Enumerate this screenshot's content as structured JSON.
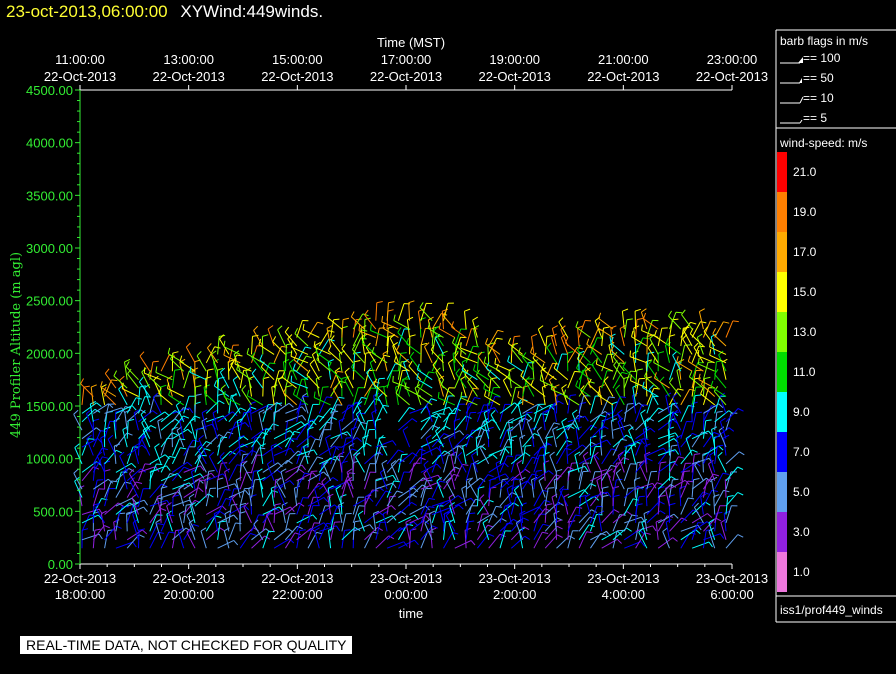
{
  "header": {
    "date": "23-oct-2013,06:00:00",
    "title": "XYWind:449winds."
  },
  "footer": {
    "disclaimer": "REAL-TIME DATA, NOT CHECKED FOR QUALITY",
    "source": "iss1/prof449_winds"
  },
  "legend": {
    "barb_title": "barb flags in m/s",
    "barbs": [
      {
        "label": "== 100"
      },
      {
        "label": "== 50"
      },
      {
        "label": "== 10"
      },
      {
        "label": "== 5"
      }
    ],
    "speed_title": "wind-speed: m/s",
    "speed_scale": [
      {
        "label": "21.0",
        "color": "#ff0000"
      },
      {
        "label": "19.0",
        "color": "#ff7f00"
      },
      {
        "label": "17.0",
        "color": "#ffaa00"
      },
      {
        "label": "15.0",
        "color": "#ffff00"
      },
      {
        "label": "13.0",
        "color": "#80ff00"
      },
      {
        "label": "11.0",
        "color": "#00dd00"
      },
      {
        "label": "9.0",
        "color": "#00ffff"
      },
      {
        "label": "7.0",
        "color": "#0000ff"
      },
      {
        "label": "5.0",
        "color": "#5f9fef"
      },
      {
        "label": "3.0",
        "color": "#9020e0"
      },
      {
        "label": "1.0",
        "color": "#ee77dd"
      }
    ]
  },
  "chart_data": {
    "type": "scatter",
    "xlabel": "time",
    "x2label": "Time (MST)",
    "ylabel": "449 Profiler Altitude (m agl)",
    "ylim": [
      0,
      4500
    ],
    "yticks": [
      "0.00",
      "500.00",
      "1000.00",
      "1500.00",
      "2000.00",
      "2500.00",
      "3000.00",
      "3500.00",
      "4000.00",
      "4500.00"
    ],
    "xticks": [
      {
        "date": "22-Oct-2013",
        "time": "18:00:00"
      },
      {
        "date": "22-Oct-2013",
        "time": "20:00:00"
      },
      {
        "date": "22-Oct-2013",
        "time": "22:00:00"
      },
      {
        "date": "23-Oct-2013",
        "time": "0:00:00"
      },
      {
        "date": "23-Oct-2013",
        "time": "2:00:00"
      },
      {
        "date": "23-Oct-2013",
        "time": "4:00:00"
      },
      {
        "date": "23-Oct-2013",
        "time": "6:00:00"
      }
    ],
    "x2ticks": [
      {
        "time": "11:00:00",
        "date": "22-Oct-2013"
      },
      {
        "time": "13:00:00",
        "date": "22-Oct-2013"
      },
      {
        "time": "15:00:00",
        "date": "22-Oct-2013"
      },
      {
        "time": "17:00:00",
        "date": "22-Oct-2013"
      },
      {
        "time": "19:00:00",
        "date": "22-Oct-2013"
      },
      {
        "time": "21:00:00",
        "date": "22-Oct-2013"
      },
      {
        "time": "23:00:00",
        "date": "22-Oct-2013"
      }
    ],
    "axis_color": "#33ee33",
    "top_wind_profile": [
      {
        "t": "22-Oct-2013 18:00",
        "top_m": 1550
      },
      {
        "t": "22-Oct-2013 19:00",
        "top_m": 1800
      },
      {
        "t": "22-Oct-2013 20:00",
        "top_m": 1950
      },
      {
        "t": "22-Oct-2013 21:00",
        "top_m": 2050
      },
      {
        "t": "22-Oct-2013 22:00",
        "top_m": 2150
      },
      {
        "t": "22-Oct-2013 23:00",
        "top_m": 2250
      },
      {
        "t": "23-Oct-2013 00:00",
        "top_m": 2400
      },
      {
        "t": "23-Oct-2013 01:00",
        "top_m": 2300
      },
      {
        "t": "23-Oct-2013 02:00",
        "top_m": 2000
      },
      {
        "t": "23-Oct-2013 03:00",
        "top_m": 2150
      },
      {
        "t": "23-Oct-2013 04:00",
        "top_m": 2250
      },
      {
        "t": "23-Oct-2013 05:00",
        "top_m": 2300
      },
      {
        "t": "23-Oct-2013 06:00",
        "top_m": 2200
      }
    ]
  }
}
